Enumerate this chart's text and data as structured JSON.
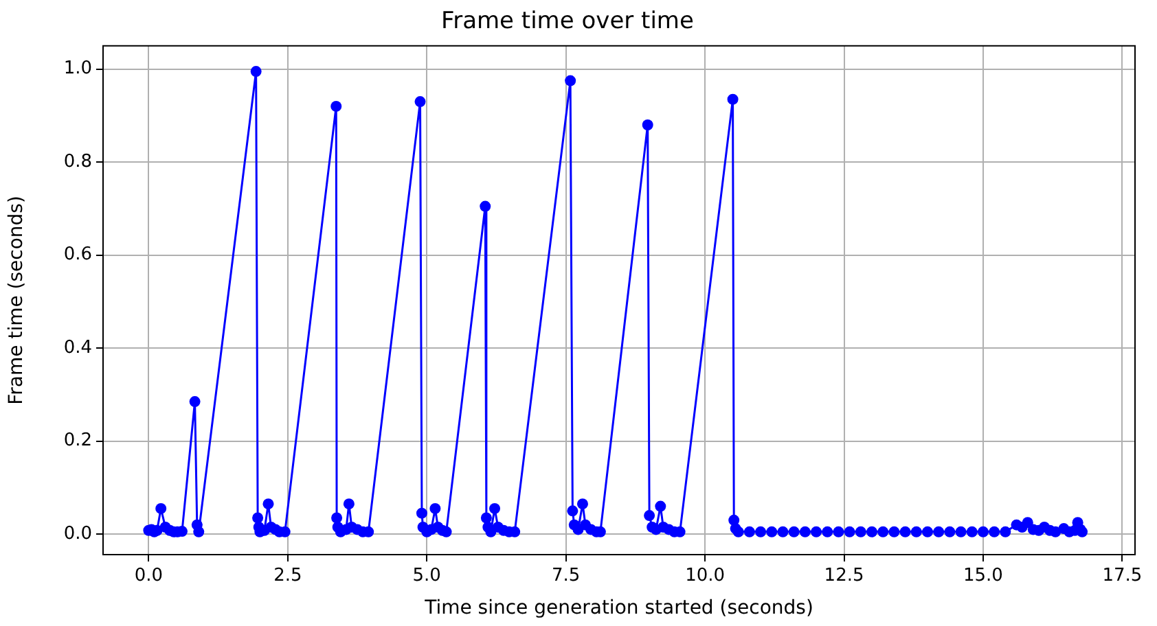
{
  "chart_data": {
    "type": "line",
    "title": "Frame time over time",
    "xlabel": "Time since generation started (seconds)",
    "ylabel": "Frame time (seconds)",
    "x": [
      0,
      0.05,
      0.1,
      0.15,
      0.22,
      0.3,
      0.38,
      0.45,
      0.52,
      0.6,
      0.83,
      0.87,
      0.9,
      1.93,
      1.96,
      1.98,
      2.0,
      2.08,
      2.15,
      2.2,
      2.28,
      2.35,
      2.45,
      3.37,
      3.38,
      3.4,
      3.45,
      3.55,
      3.6,
      3.65,
      3.75,
      3.85,
      3.95,
      4.88,
      4.91,
      4.93,
      5.0,
      5.08,
      5.15,
      5.2,
      5.28,
      5.35,
      6.05,
      6.07,
      6.1,
      6.15,
      6.22,
      6.28,
      6.38,
      6.48,
      6.58,
      7.58,
      7.62,
      7.65,
      7.72,
      7.8,
      7.85,
      7.95,
      8.05,
      8.12,
      8.97,
      9.0,
      9.05,
      9.12,
      9.2,
      9.25,
      9.35,
      9.45,
      9.55,
      10.5,
      10.52,
      10.55,
      10.6,
      10.8,
      11.0,
      11.2,
      11.4,
      11.6,
      11.8,
      12.0,
      12.2,
      12.4,
      12.6,
      12.8,
      13.0,
      13.2,
      13.4,
      13.6,
      13.8,
      14.0,
      14.2,
      14.4,
      14.6,
      14.8,
      15.0,
      15.2,
      15.4,
      15.6,
      15.7,
      15.8,
      15.9,
      16.0,
      16.1,
      16.2,
      16.3,
      16.45,
      16.55,
      16.65,
      16.7,
      16.75,
      16.78
    ],
    "series": [
      {
        "color": "#0000ff",
        "values": [
          0.008,
          0.01,
          0.005,
          0.008,
          0.055,
          0.015,
          0.008,
          0.005,
          0.005,
          0.006,
          0.285,
          0.02,
          0.005,
          0.995,
          0.035,
          0.015,
          0.005,
          0.008,
          0.065,
          0.015,
          0.01,
          0.005,
          0.005,
          0.92,
          0.035,
          0.015,
          0.005,
          0.01,
          0.065,
          0.015,
          0.01,
          0.005,
          0.005,
          0.93,
          0.045,
          0.015,
          0.005,
          0.01,
          0.055,
          0.015,
          0.008,
          0.005,
          0.705,
          0.035,
          0.015,
          0.005,
          0.055,
          0.015,
          0.008,
          0.005,
          0.005,
          0.975,
          0.05,
          0.02,
          0.01,
          0.065,
          0.02,
          0.01,
          0.005,
          0.005,
          0.88,
          0.04,
          0.015,
          0.01,
          0.06,
          0.015,
          0.01,
          0.005,
          0.005,
          0.935,
          0.03,
          0.012,
          0.005,
          0.005,
          0.005,
          0.005,
          0.005,
          0.005,
          0.005,
          0.005,
          0.005,
          0.005,
          0.005,
          0.005,
          0.005,
          0.005,
          0.005,
          0.005,
          0.005,
          0.005,
          0.005,
          0.005,
          0.005,
          0.005,
          0.005,
          0.005,
          0.005,
          0.02,
          0.015,
          0.025,
          0.01,
          0.008,
          0.015,
          0.008,
          0.005,
          0.012,
          0.005,
          0.008,
          0.025,
          0.01,
          0.005
        ]
      }
    ],
    "xlim": [
      -0.82,
      17.73
    ],
    "ylim": [
      -0.044,
      1.05
    ],
    "xticks": [
      {
        "value": 0,
        "label": "0.0"
      },
      {
        "value": 2.5,
        "label": "2.5"
      },
      {
        "value": 5,
        "label": "5.0"
      },
      {
        "value": 7.5,
        "label": "7.5"
      },
      {
        "value": 10,
        "label": "10.0"
      },
      {
        "value": 12.5,
        "label": "12.5"
      },
      {
        "value": 15,
        "label": "15.0"
      },
      {
        "value": 17.5,
        "label": "17.5"
      }
    ],
    "yticks": [
      {
        "value": 0,
        "label": "0.0"
      },
      {
        "value": 0.2,
        "label": "0.2"
      },
      {
        "value": 0.4,
        "label": "0.4"
      },
      {
        "value": 0.6,
        "label": "0.6"
      },
      {
        "value": 0.8,
        "label": "0.8"
      },
      {
        "value": 1,
        "label": "1.0"
      }
    ],
    "grid": true,
    "marker": "circle",
    "line_style": "solid"
  }
}
